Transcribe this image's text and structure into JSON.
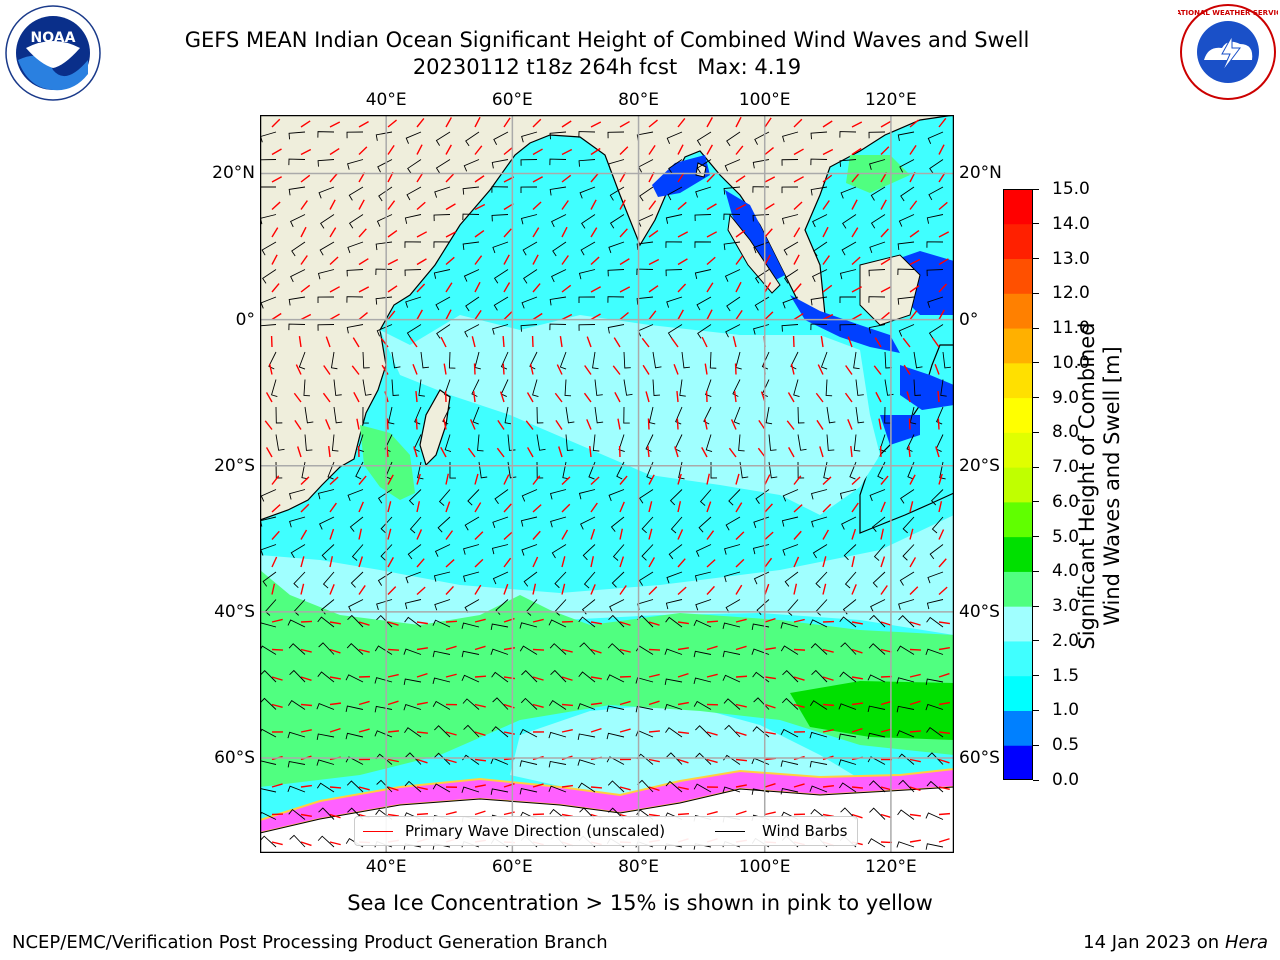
{
  "title": {
    "line1": "GEFS MEAN Indian Ocean Significant Height of Combined Wind Waves and Swell",
    "line2": "20230112 t18z 264h fcst   Max: 4.19"
  },
  "logos": {
    "left": {
      "icon": "noaa-logo",
      "text": "NOAA"
    },
    "right": {
      "icon": "nws-logo",
      "text": "NATIONAL WEATHER SERVICE"
    }
  },
  "map": {
    "lon_range": [
      20,
      130
    ],
    "lat_range": [
      -73,
      28
    ],
    "lon_ticks": [
      "40°E",
      "60°E",
      "80°E",
      "100°E",
      "120°E"
    ],
    "lon_values": [
      40,
      60,
      80,
      100,
      120
    ],
    "lat_ticks": [
      "20°N",
      "0°",
      "20°S",
      "40°S",
      "60°S"
    ],
    "lat_values": [
      20,
      0,
      -20,
      -40,
      -60
    ],
    "land_color": "#efeedc",
    "grid": true
  },
  "legend": {
    "wave_label": "Primary Wave Direction (unscaled)",
    "wave_color": "#ff0000",
    "wind_label": "Wind Barbs",
    "wind_color": "#000000"
  },
  "colorbar": {
    "label_line1": "Significant Height of Combined",
    "label_line2": "Wind Waves and Swell [m]",
    "ticks": [
      "0.0",
      "0.5",
      "1.0",
      "1.5",
      "2.0",
      "3.0",
      "4.0",
      "5.0",
      "6.0",
      "7.0",
      "8.0",
      "9.0",
      "10.0",
      "11.0",
      "12.0",
      "13.0",
      "14.0",
      "15.0"
    ],
    "colors": [
      "#0000ff",
      "#0080ff",
      "#00ffff",
      "#40ffff",
      "#a0ffff",
      "#50ff80",
      "#00e000",
      "#60ff00",
      "#c0ff00",
      "#e0ff00",
      "#ffff00",
      "#ffe000",
      "#ffb000",
      "#ff8000",
      "#ff5000",
      "#ff2000",
      "#ff0000"
    ]
  },
  "annotation": "Sea Ice Concentration > 15% is shown in pink to yellow",
  "footer": {
    "left": "NCEP/EMC/Verification Post Processing Product Generation Branch",
    "right_prefix": "14 Jan 2023 on ",
    "right_host": "Hera"
  }
}
